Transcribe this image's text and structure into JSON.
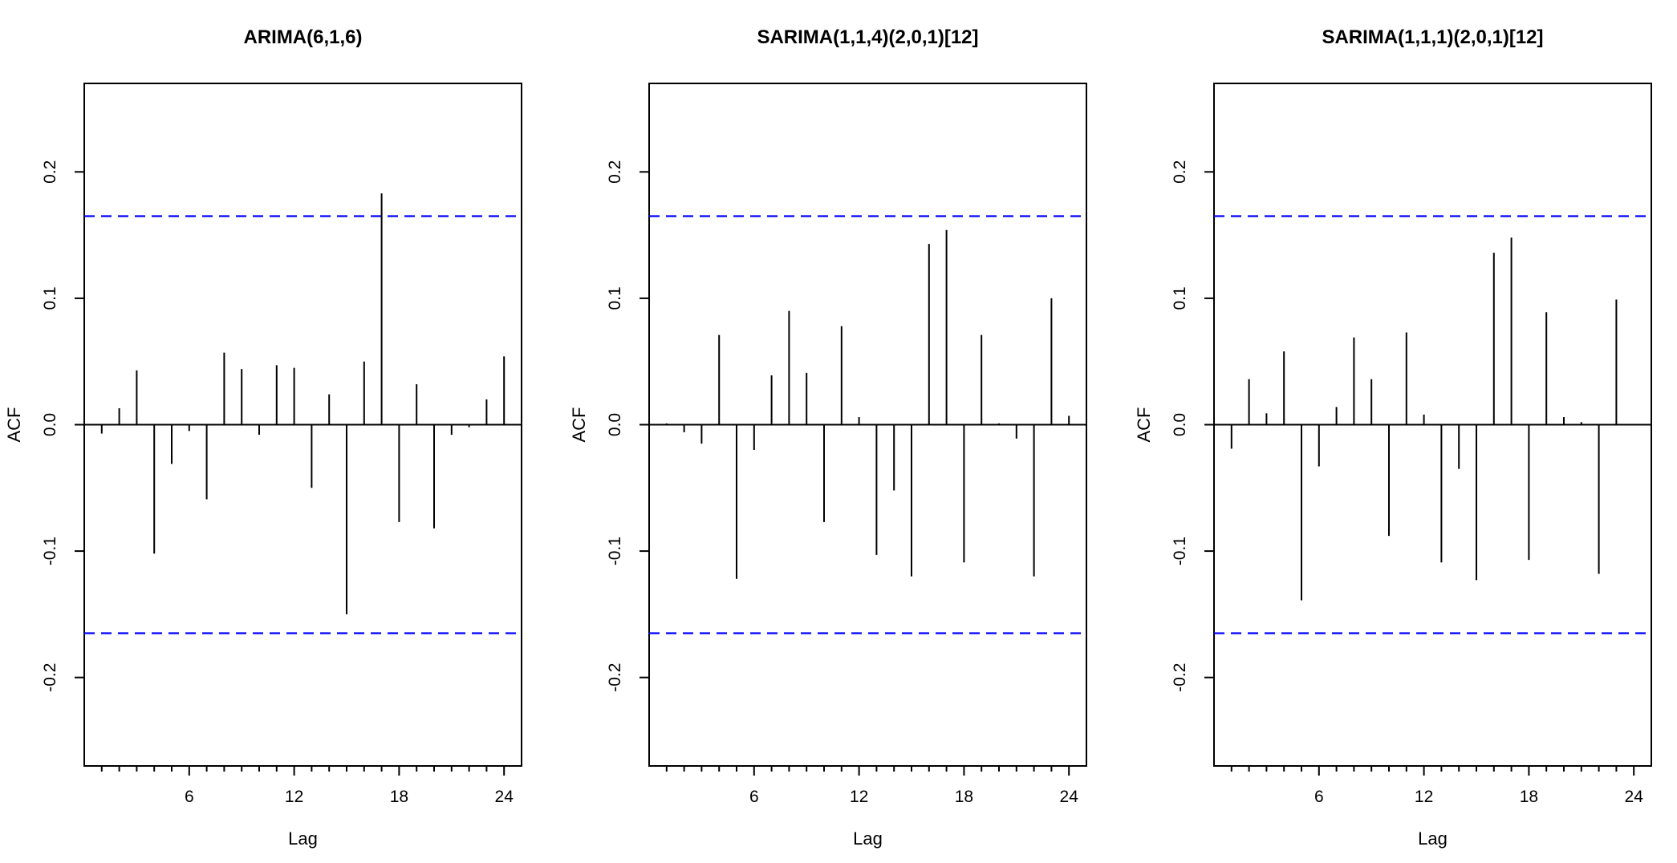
{
  "chart_data": [
    {
      "type": "bar",
      "title": "ARIMA(6,1,6)",
      "xlabel": "Lag",
      "ylabel": "ACF",
      "xlim": [
        0,
        25
      ],
      "ylim": [
        -0.27,
        0.27
      ],
      "x_ticks": [
        6,
        12,
        18,
        24
      ],
      "y_ticks": [
        -0.2,
        -0.1,
        0.0,
        0.1,
        0.2
      ],
      "y_tick_labels": [
        "-0.2",
        "-0.1",
        "0.0",
        "0.1",
        "0.2"
      ],
      "confidence_bounds": [
        0.165,
        -0.165
      ],
      "lags": [
        1,
        2,
        3,
        4,
        5,
        6,
        7,
        8,
        9,
        10,
        11,
        12,
        13,
        14,
        15,
        16,
        17,
        18,
        19,
        20,
        21,
        22,
        23,
        24
      ],
      "values": [
        -0.007,
        0.013,
        0.043,
        -0.102,
        -0.031,
        -0.005,
        -0.059,
        0.057,
        0.044,
        -0.008,
        0.047,
        0.045,
        -0.05,
        0.024,
        -0.15,
        0.05,
        0.183,
        -0.077,
        0.032,
        -0.082,
        -0.008,
        -0.002,
        0.02,
        0.054
      ]
    },
    {
      "type": "bar",
      "title": "SARIMA(1,1,4)(2,0,1)[12]",
      "xlabel": "Lag",
      "ylabel": "ACF",
      "xlim": [
        0,
        25
      ],
      "ylim": [
        -0.27,
        0.27
      ],
      "x_ticks": [
        6,
        12,
        18,
        24
      ],
      "y_ticks": [
        -0.2,
        -0.1,
        0.0,
        0.1,
        0.2
      ],
      "y_tick_labels": [
        "-0.2",
        "-0.1",
        "0.0",
        "0.1",
        "0.2"
      ],
      "confidence_bounds": [
        0.165,
        -0.165
      ],
      "lags": [
        1,
        2,
        3,
        4,
        5,
        6,
        7,
        8,
        9,
        10,
        11,
        12,
        13,
        14,
        15,
        16,
        17,
        18,
        19,
        20,
        21,
        22,
        23,
        24
      ],
      "values": [
        0.001,
        -0.006,
        -0.015,
        0.071,
        -0.122,
        -0.02,
        0.039,
        0.09,
        0.041,
        -0.077,
        0.078,
        0.006,
        -0.103,
        -0.052,
        -0.12,
        0.143,
        0.154,
        -0.109,
        0.071,
        0.001,
        -0.011,
        -0.12,
        0.1,
        0.007
      ]
    },
    {
      "type": "bar",
      "title": "SARIMA(1,1,1)(2,0,1)[12]",
      "xlabel": "Lag",
      "ylabel": "ACF",
      "xlim": [
        0,
        25
      ],
      "ylim": [
        -0.27,
        0.27
      ],
      "x_ticks": [
        6,
        12,
        18,
        24
      ],
      "y_ticks": [
        -0.2,
        -0.1,
        0.0,
        0.1,
        0.2
      ],
      "y_tick_labels": [
        "-0.2",
        "-0.1",
        "0.0",
        "0.1",
        "0.2"
      ],
      "confidence_bounds": [
        0.165,
        -0.165
      ],
      "lags": [
        1,
        2,
        3,
        4,
        5,
        6,
        7,
        8,
        9,
        10,
        11,
        12,
        13,
        14,
        15,
        16,
        17,
        18,
        19,
        20,
        21,
        22,
        23,
        24
      ],
      "values": [
        -0.019,
        0.036,
        0.009,
        0.058,
        -0.139,
        -0.033,
        0.014,
        0.069,
        0.036,
        -0.088,
        0.073,
        0.008,
        -0.109,
        -0.035,
        -0.123,
        0.136,
        0.148,
        -0.107,
        0.089,
        0.006,
        0.002,
        -0.118,
        0.099,
        0.0
      ]
    }
  ],
  "colors": {
    "confidence_line": "#0000ff",
    "bars": "#000000",
    "frame": "#000000"
  },
  "grid": false,
  "legend": "none"
}
